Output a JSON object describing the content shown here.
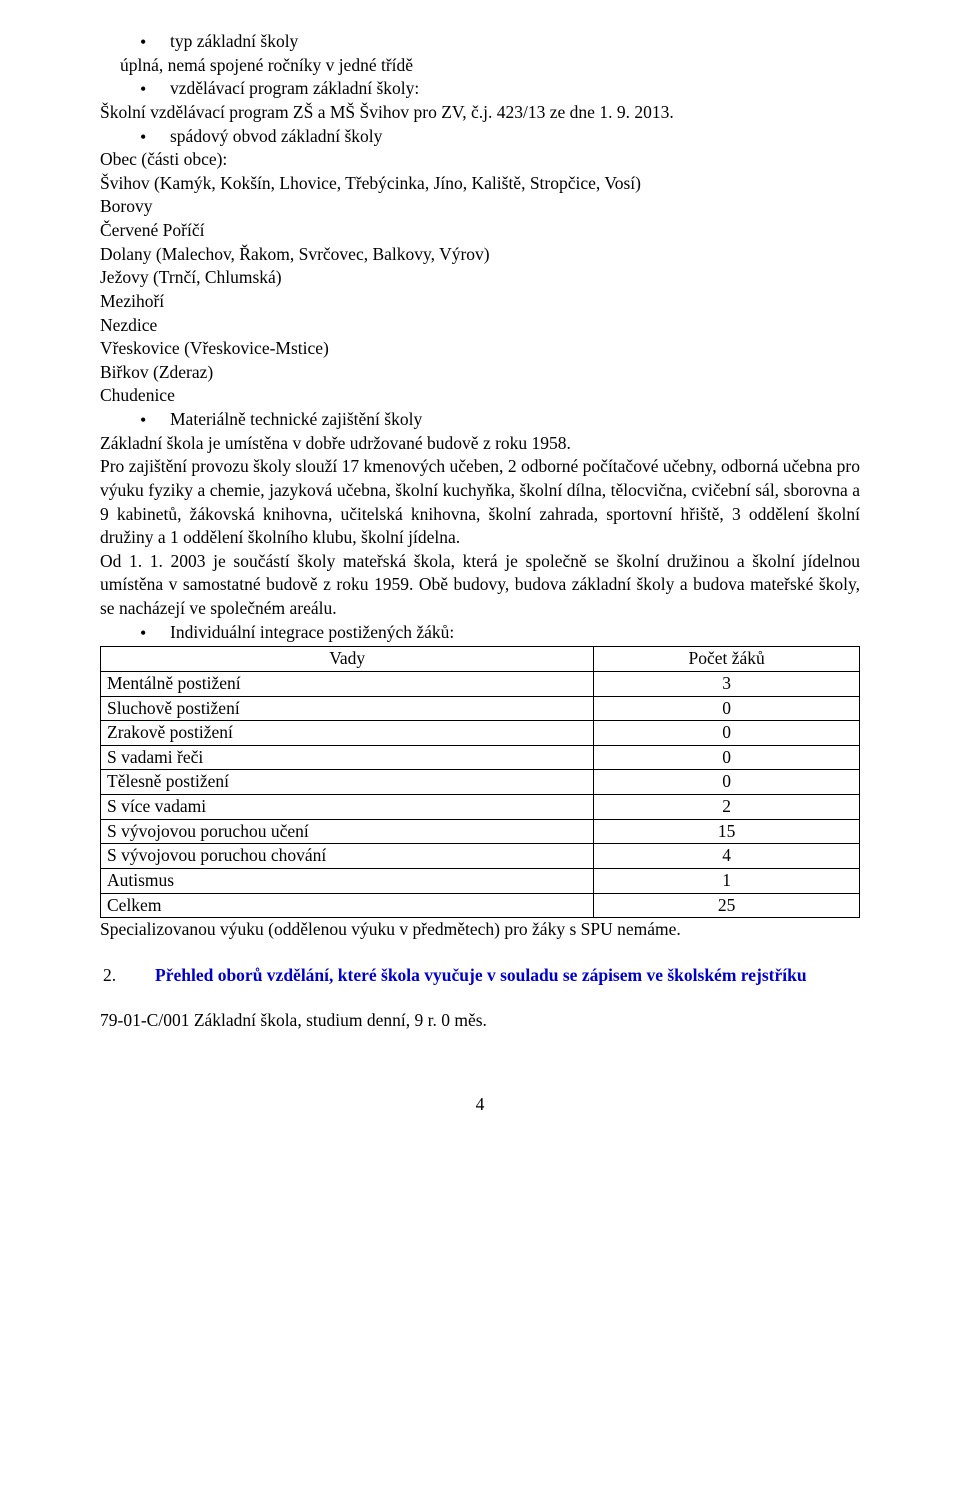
{
  "colors": {
    "text": "#000000",
    "heading_blue": "#0000cc",
    "table_border": "#000000",
    "background": "#ffffff"
  },
  "typography": {
    "font_family": "Times New Roman",
    "base_size_pt": 13,
    "line_height": 1.35
  },
  "bullets": {
    "typ": "typ základní školy",
    "typ_sub": "úplná, nemá spojené ročníky v jedné třídě",
    "vzdel": "vzdělávací program základní školy:",
    "vzdel_sub": "Školní vzdělávací program ZŠ a MŠ Švihov pro ZV,  č.j. 423/13 ze dne 1. 9. 2013.",
    "spad": "spádový obvod základní školy"
  },
  "obec": {
    "title": "Obec (části obce):",
    "lines": [
      "Švihov (Kamýk, Kokšín,  Lhovice, Třebýcinka, Jíno, Kaliště, Stropčice, Vosí)",
      "Borovy",
      "Červené Poříčí",
      "Dolany (Malechov, Řakom, Svrčovec, Balkovy, Výrov)",
      "Ježovy (Trnčí, Chlumská)",
      "Mezihoří",
      "Nezdice",
      "Vřeskovice (Vřeskovice-Mstice)",
      "Biřkov (Zderaz)",
      "Chudenice"
    ]
  },
  "material": {
    "bullet": "Materiálně technické zajištění školy",
    "p1": "Základní škola je umístěna v dobře udržované budově z roku 1958.",
    "p2": "Pro zajištění provozu školy slouží 17 kmenových učeben, 2 odborné počítačové učebny, odborná učebna pro výuku fyziky a chemie, jazyková učebna, školní kuchyňka, školní dílna, tělocvična, cvičební sál, sborovna a 9 kabinetů, žákovská knihovna, učitelská knihovna, školní zahrada, sportovní hřiště, 3 oddělení školní družiny a 1 oddělení školního klubu, školní jídelna.",
    "p3": "Od 1. 1. 2003 je součástí školy mateřská škola, která je společně se školní družinou a školní jídelnou umístěna v samostatné budově z roku 1959. Obě budovy, budova základní školy a budova mateřské školy, se nacházejí ve společném areálu."
  },
  "integrace_bullet": "Individuální integrace postižených žáků:",
  "table": {
    "header": {
      "c1": "Vady",
      "c2": "Počet žáků"
    },
    "rows": [
      {
        "c1": "Mentálně postižení",
        "c2": "3"
      },
      {
        "c1": "Sluchově postižení",
        "c2": "0"
      },
      {
        "c1": "Zrakově postižení",
        "c2": "0"
      },
      {
        "c1": "S vadami řeči",
        "c2": "0"
      },
      {
        "c1": "Tělesně postižení",
        "c2": "0"
      },
      {
        "c1": "S více vadami",
        "c2": "2"
      },
      {
        "c1": "S vývojovou poruchou učení",
        "c2": "15"
      },
      {
        "c1": "S vývojovou poruchou chování",
        "c2": "4"
      },
      {
        "c1": "Autismus",
        "c2": "1"
      },
      {
        "c1": "Celkem",
        "c2": "25"
      }
    ]
  },
  "post_table": "Specializovanou výuku (oddělenou výuku v předmětech) pro žáky s SPU nemáme.",
  "section2": {
    "num": "2.",
    "title": "Přehled oborů vzdělání, které škola vyučuje v souladu se zápisem ve školském rejstříku"
  },
  "final": "79-01-C/001 Základní škola, studium denní, 9 r. 0 měs.",
  "page_number": "4"
}
